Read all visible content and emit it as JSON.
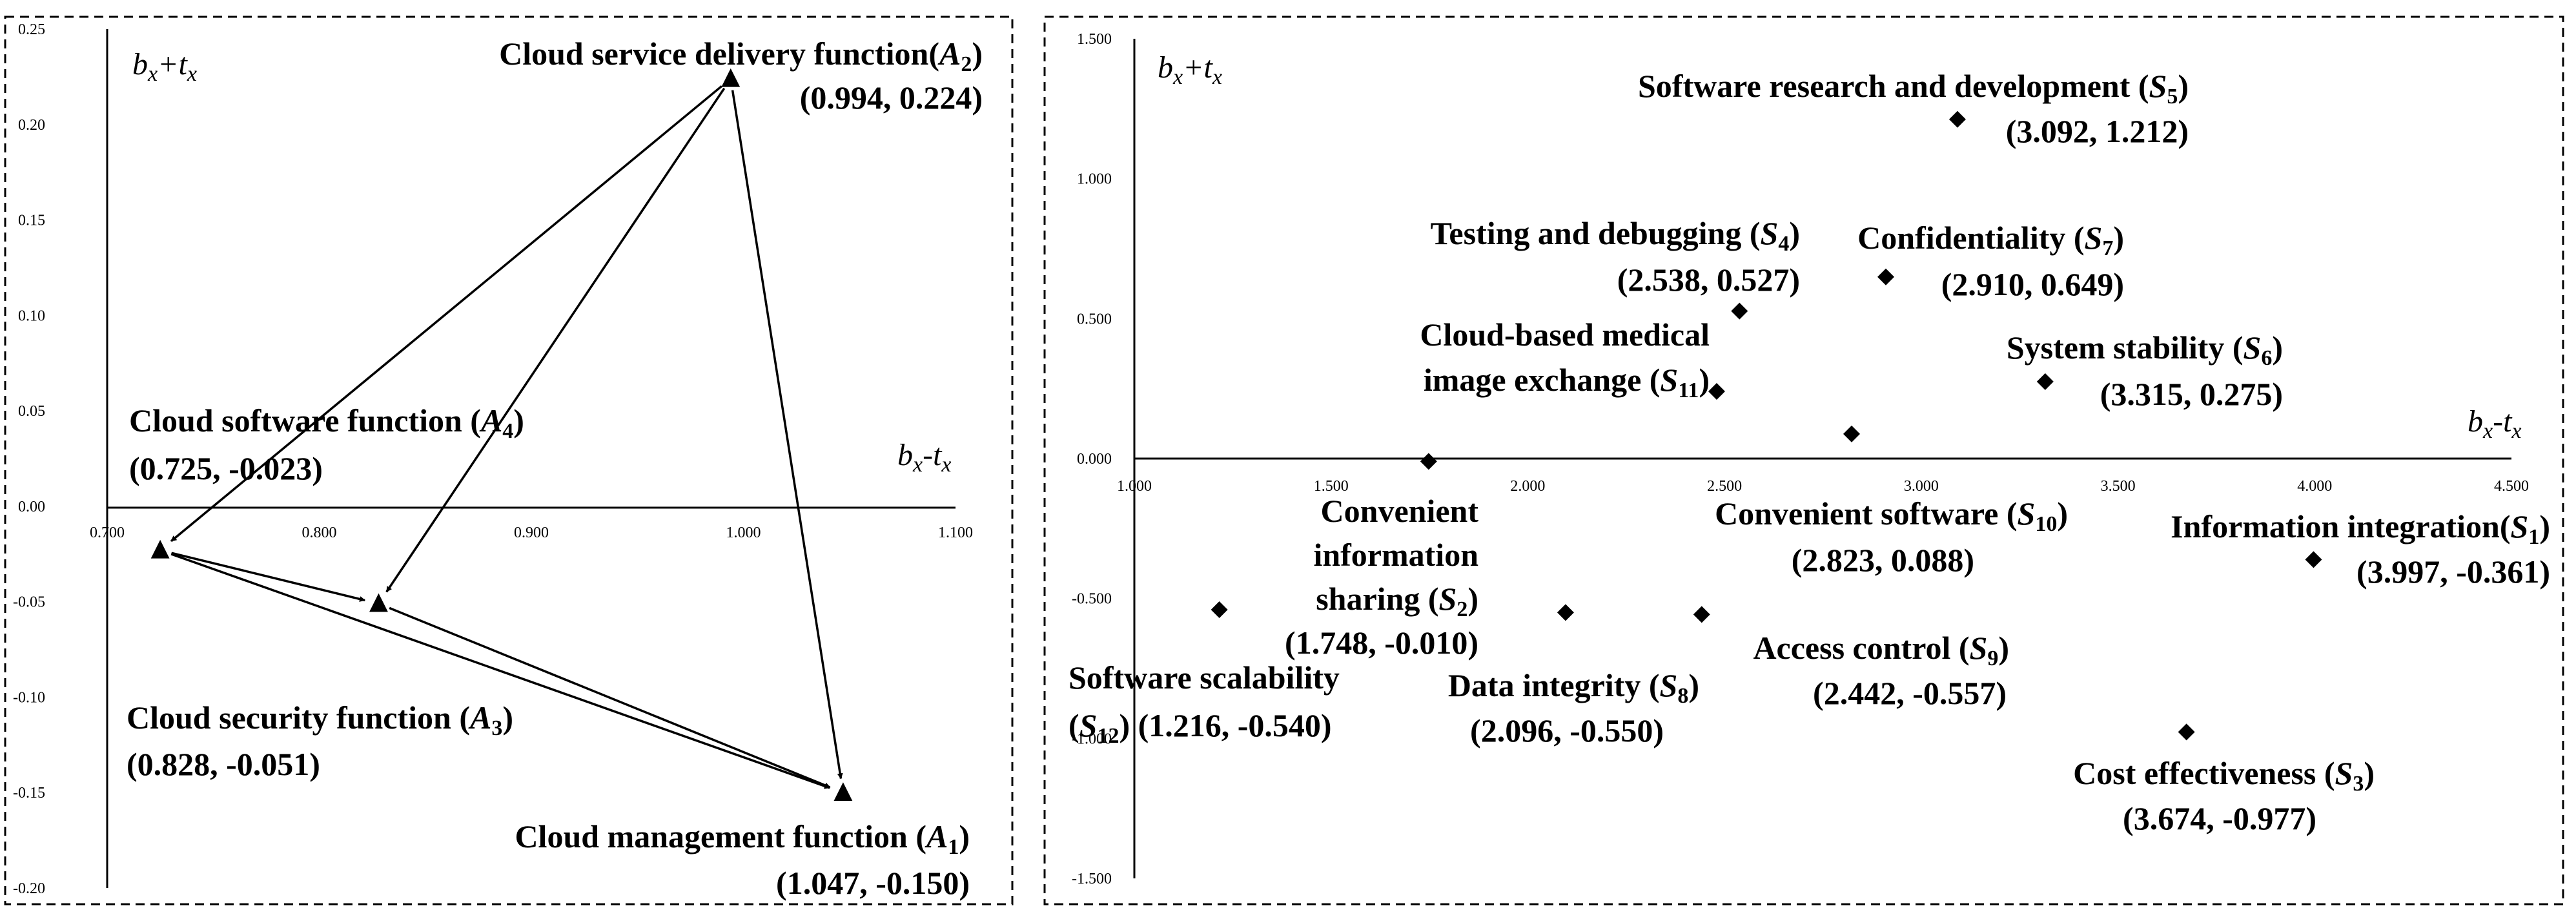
{
  "chart_data": [
    {
      "type": "scatter",
      "panel": "left",
      "xlabel": "bx-tx",
      "ylabel": "bx+tx",
      "xlim": [
        0.7,
        1.1
      ],
      "ylim": [
        -0.2,
        0.25
      ],
      "x_ticks": [
        "0.700",
        "0.800",
        "0.900",
        "1.000",
        "1.100"
      ],
      "y_ticks": [
        "-0.20",
        "-0.15",
        "-0.10",
        "-0.05",
        "0.00",
        "0.05",
        "0.10",
        "0.15",
        "0.20",
        "0.25"
      ],
      "marker": "triangle",
      "points": [
        {
          "name": "Cloud management function",
          "sub": "1",
          "coord": "(1.047, -0.150)",
          "x": 1.047,
          "y": -0.15
        },
        {
          "name": "Cloud service delivery function",
          "sub": "2",
          "coord": "(0.994, 0.224)",
          "x": 0.994,
          "y": 0.224
        },
        {
          "name": "Cloud security function",
          "sub": "3",
          "coord": "(0.828, -0.051)",
          "x": 0.828,
          "y": -0.051
        },
        {
          "name": "Cloud software function",
          "sub": "4",
          "coord": "(0.725, -0.023)",
          "x": 0.725,
          "y": -0.023
        }
      ],
      "arrows": [
        {
          "from": "A2",
          "to": "A4"
        },
        {
          "from": "A2",
          "to": "A3"
        },
        {
          "from": "A2",
          "to": "A1"
        },
        {
          "from": "A4",
          "to": "A3"
        },
        {
          "from": "A4",
          "to": "A1"
        },
        {
          "from": "A3",
          "to": "A1"
        }
      ]
    },
    {
      "type": "scatter",
      "panel": "right",
      "xlabel": "bx-tx",
      "ylabel": "bx+tx",
      "xlim": [
        1.0,
        4.5
      ],
      "ylim": [
        -1.5,
        1.5
      ],
      "x_ticks": [
        "1.000",
        "1.500",
        "2.000",
        "2.500",
        "3.000",
        "3.500",
        "4.000",
        "4.500"
      ],
      "y_ticks": [
        "-1.500",
        "-1.000",
        "-0.500",
        "0.000",
        "0.500",
        "1.000",
        "1.500"
      ],
      "marker": "diamond",
      "points": [
        {
          "name": "Information integration",
          "sub": "1",
          "coord": "(3.997, -0.361)",
          "x": 3.997,
          "y": -0.361
        },
        {
          "name": "Convenient information sharing",
          "sub": "2",
          "coord": "(1.748, -0.010)",
          "x": 1.748,
          "y": -0.01
        },
        {
          "name": "Cost effectiveness",
          "sub": "3",
          "coord": "(3.674, -0.977)",
          "x": 3.674,
          "y": -0.977
        },
        {
          "name": "Testing and debugging",
          "sub": "4",
          "coord": "(2.538, 0.527)",
          "x": 2.538,
          "y": 0.527
        },
        {
          "name": "Software research and development",
          "sub": "5",
          "coord": "(3.092, 1.212)",
          "x": 3.092,
          "y": 1.212
        },
        {
          "name": "System stability",
          "sub": "6",
          "coord": "(3.315, 0.275)",
          "x": 3.315,
          "y": 0.275
        },
        {
          "name": "Confidentiality",
          "sub": "7",
          "coord": "(2.910, 0.649)",
          "x": 2.91,
          "y": 0.649
        },
        {
          "name": "Data integrity",
          "sub": "8",
          "coord": "(2.096, -0.550)",
          "x": 2.096,
          "y": -0.55
        },
        {
          "name": "Access control",
          "sub": "9",
          "coord": "(2.442, -0.557)",
          "x": 2.442,
          "y": -0.557
        },
        {
          "name": "Convenient software",
          "sub": "10",
          "coord": "(2.823, 0.088)",
          "x": 2.823,
          "y": 0.088
        },
        {
          "name": "Cloud-based medical image exchange",
          "sub": "11",
          "coord": "(2.480, 0.240)",
          "x": 2.48,
          "y": 0.24
        },
        {
          "name": "Software scalability",
          "sub": "12",
          "coord": "(1.216, -0.540)",
          "x": 1.216,
          "y": -0.54
        }
      ]
    }
  ]
}
